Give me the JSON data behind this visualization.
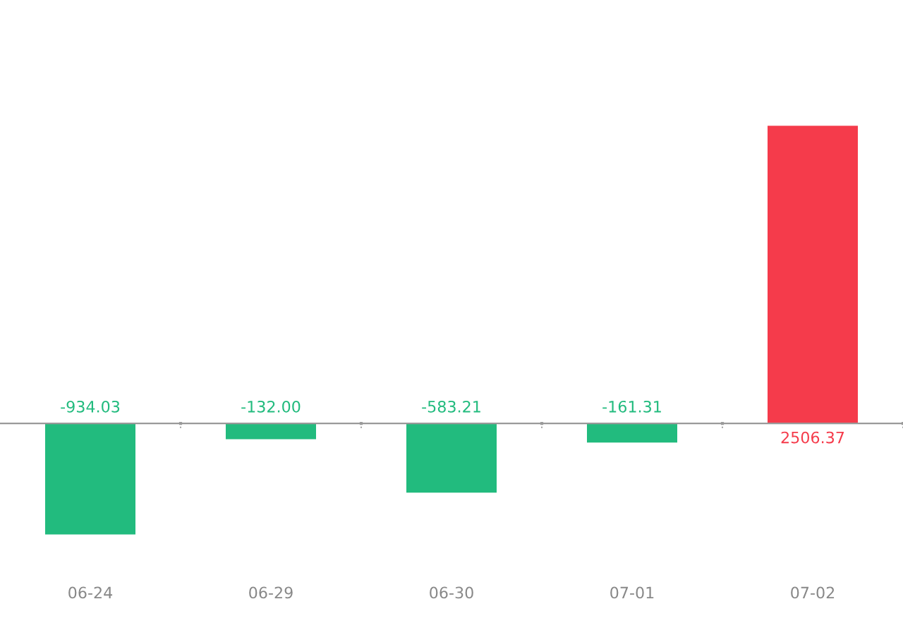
{
  "chart_data": {
    "type": "bar",
    "categories": [
      "06-24",
      "06-29",
      "06-30",
      "07-01",
      "07-02"
    ],
    "values": [
      -934.03,
      -132.0,
      -583.21,
      -161.31,
      2506.37
    ],
    "colors": [
      "#22bb7e",
      "#22bb7e",
      "#22bb7e",
      "#22bb7e",
      "#f53b4b"
    ],
    "value_labels": [
      "-934.03",
      "-132.00",
      "-583.21",
      "-161.31",
      "2506.37"
    ],
    "grid": false
  }
}
